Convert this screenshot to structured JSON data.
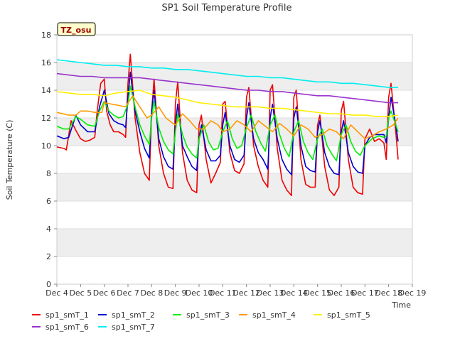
{
  "chart_data": {
    "type": "line",
    "title": "SP1 Soil Temperature Profile",
    "xlabel": "Time",
    "ylabel": "Soil Temperature (C)",
    "annotation": "TZ_osu",
    "xlim": [
      4,
      19
    ],
    "ylim": [
      0,
      18
    ],
    "x_tick_values": [
      4,
      5,
      6,
      7,
      8,
      9,
      10,
      11,
      12,
      13,
      14,
      15,
      16,
      17,
      18,
      19
    ],
    "x_tick_labels": [
      "Dec 4",
      "Dec 5",
      "Dec 6",
      "Dec 7",
      "Dec 8",
      "Dec 9",
      "Dec 10",
      "Dec 11",
      "Dec 12",
      "Dec 13",
      "Dec 14",
      "Dec 15",
      "Dec 16",
      "Dec 17",
      "Dec 18",
      "Dec 19"
    ],
    "y_ticks": [
      0,
      2,
      4,
      6,
      8,
      10,
      12,
      14,
      16,
      18
    ],
    "grid": true,
    "banded_background": true,
    "legend_placement": "bottom",
    "series": [
      {
        "name": "sp1_smT_1",
        "color": "#ee0000",
        "x": [
          4.0,
          4.3,
          4.4,
          4.6,
          4.8,
          5.0,
          5.2,
          5.4,
          5.6,
          5.7,
          5.85,
          6.0,
          6.1,
          6.25,
          6.4,
          6.6,
          6.8,
          6.9,
          7.0,
          7.1,
          7.3,
          7.5,
          7.7,
          7.9,
          8.0,
          8.1,
          8.3,
          8.5,
          8.7,
          8.9,
          9.0,
          9.1,
          9.3,
          9.5,
          9.7,
          9.9,
          10.0,
          10.1,
          10.3,
          10.5,
          10.7,
          10.9,
          11.0,
          11.1,
          11.3,
          11.5,
          11.7,
          11.9,
          12.0,
          12.1,
          12.3,
          12.5,
          12.7,
          12.9,
          13.0,
          13.1,
          13.3,
          13.5,
          13.7,
          13.9,
          14.0,
          14.1,
          14.3,
          14.5,
          14.7,
          14.9,
          15.0,
          15.1,
          15.3,
          15.5,
          15.7,
          15.9,
          16.0,
          16.1,
          16.3,
          16.5,
          16.7,
          16.9,
          17.0,
          17.2,
          17.4,
          17.6,
          17.8,
          17.9,
          18.0,
          18.1,
          18.3,
          18.4
        ],
        "y": [
          9.9,
          9.8,
          9.7,
          11.8,
          11.1,
          10.5,
          10.3,
          10.4,
          10.6,
          12.5,
          14.5,
          14.8,
          12.5,
          11.5,
          11.0,
          11.0,
          10.8,
          10.6,
          14.5,
          16.6,
          12.0,
          9.5,
          8.0,
          7.5,
          12.5,
          14.8,
          10.0,
          8.0,
          7.0,
          6.9,
          13.0,
          14.6,
          9.5,
          7.5,
          6.8,
          6.6,
          11.5,
          12.2,
          9.0,
          7.3,
          8.0,
          8.8,
          13.0,
          13.2,
          9.5,
          8.2,
          8.0,
          8.7,
          13.5,
          14.2,
          10.0,
          8.5,
          7.5,
          7.0,
          14.0,
          14.4,
          9.8,
          7.5,
          6.8,
          6.4,
          13.5,
          14.0,
          9.0,
          7.2,
          7.0,
          7.0,
          11.5,
          12.2,
          8.5,
          6.8,
          6.4,
          7.0,
          12.5,
          13.2,
          9.0,
          7.0,
          6.6,
          6.5,
          10.5,
          11.2,
          10.3,
          10.5,
          10.2,
          9.0,
          13.5,
          14.5,
          11.0,
          9.0
        ]
      },
      {
        "name": "sp1_smT_2",
        "color": "#0000cc",
        "x": [
          4.0,
          4.3,
          4.5,
          4.8,
          5.0,
          5.3,
          5.6,
          5.8,
          6.0,
          6.2,
          6.4,
          6.6,
          6.8,
          6.9,
          7.0,
          7.1,
          7.3,
          7.5,
          7.7,
          7.9,
          8.0,
          8.1,
          8.3,
          8.5,
          8.7,
          8.9,
          9.0,
          9.1,
          9.3,
          9.5,
          9.7,
          9.9,
          10.0,
          10.1,
          10.3,
          10.5,
          10.7,
          10.9,
          11.0,
          11.1,
          11.3,
          11.5,
          11.7,
          11.9,
          12.0,
          12.1,
          12.3,
          12.5,
          12.7,
          12.9,
          13.0,
          13.1,
          13.3,
          13.5,
          13.7,
          13.9,
          14.0,
          14.1,
          14.3,
          14.5,
          14.7,
          14.9,
          15.0,
          15.1,
          15.3,
          15.5,
          15.7,
          15.9,
          16.0,
          16.1,
          16.3,
          16.5,
          16.7,
          16.9,
          17.0,
          17.2,
          17.4,
          17.6,
          17.8,
          17.9,
          18.0,
          18.1,
          18.3,
          18.4
        ],
        "y": [
          10.7,
          10.5,
          10.6,
          12.2,
          11.5,
          11.0,
          11.0,
          12.8,
          14.0,
          12.3,
          11.8,
          11.6,
          11.5,
          11.3,
          13.5,
          15.3,
          12.5,
          11.0,
          9.8,
          9.1,
          12.5,
          14.0,
          10.5,
          9.2,
          8.5,
          8.3,
          11.5,
          13.0,
          10.0,
          9.2,
          8.5,
          8.2,
          10.5,
          11.5,
          9.7,
          8.9,
          8.9,
          9.3,
          11.5,
          12.4,
          10.0,
          9.0,
          8.8,
          9.3,
          12.0,
          13.1,
          10.5,
          9.5,
          9.0,
          8.3,
          12.0,
          13.0,
          10.5,
          9.0,
          8.3,
          7.9,
          12.0,
          12.8,
          10.0,
          8.5,
          8.2,
          8.1,
          11.0,
          11.8,
          9.5,
          8.5,
          8.0,
          7.9,
          11.0,
          11.8,
          9.5,
          8.5,
          8.1,
          8.0,
          10.0,
          10.6,
          10.8,
          10.8,
          10.8,
          10.2,
          12.0,
          13.5,
          11.5,
          10.3
        ]
      },
      {
        "name": "sp1_smT_3",
        "color": "#00ee00",
        "x": [
          4.0,
          4.3,
          4.5,
          4.8,
          5.0,
          5.3,
          5.6,
          5.8,
          6.0,
          6.2,
          6.4,
          6.6,
          6.8,
          7.0,
          7.1,
          7.3,
          7.5,
          7.7,
          7.9,
          8.0,
          8.1,
          8.3,
          8.5,
          8.7,
          8.9,
          9.0,
          9.1,
          9.3,
          9.5,
          9.7,
          9.9,
          10.0,
          10.2,
          10.4,
          10.6,
          10.8,
          11.0,
          11.2,
          11.4,
          11.6,
          11.8,
          12.0,
          12.2,
          12.4,
          12.6,
          12.8,
          13.0,
          13.2,
          13.4,
          13.6,
          13.8,
          14.0,
          14.2,
          14.4,
          14.6,
          14.8,
          15.0,
          15.2,
          15.4,
          15.6,
          15.8,
          16.0,
          16.2,
          16.4,
          16.6,
          16.8,
          17.0,
          17.3,
          17.6,
          17.8,
          17.9,
          18.0,
          18.1,
          18.3,
          18.4
        ],
        "y": [
          11.4,
          11.2,
          11.2,
          12.1,
          11.9,
          11.5,
          11.4,
          12.5,
          13.2,
          12.5,
          12.2,
          12.0,
          12.1,
          13.0,
          14.3,
          12.8,
          11.5,
          10.7,
          10.1,
          12.0,
          13.2,
          11.3,
          10.3,
          9.7,
          9.4,
          11.0,
          12.3,
          10.8,
          9.9,
          9.4,
          9.1,
          10.5,
          11.5,
          10.3,
          9.7,
          9.8,
          11.0,
          11.8,
          10.5,
          9.8,
          10.0,
          11.3,
          12.2,
          11.0,
          10.2,
          9.6,
          11.5,
          12.2,
          10.8,
          9.8,
          9.2,
          11.0,
          11.8,
          10.3,
          9.5,
          9.0,
          10.5,
          11.2,
          10.0,
          9.4,
          8.9,
          10.8,
          11.5,
          10.3,
          9.6,
          9.3,
          10.0,
          10.5,
          10.7,
          10.6,
          10.7,
          12.0,
          12.5,
          11.5,
          11.0
        ]
      },
      {
        "name": "sp1_smT_4",
        "color": "#ff9900",
        "x": [
          4.0,
          4.5,
          4.8,
          5.0,
          5.3,
          5.6,
          5.9,
          6.0,
          6.3,
          6.6,
          6.9,
          7.2,
          7.5,
          7.8,
          8.0,
          8.3,
          8.6,
          8.9,
          9.0,
          9.3,
          9.6,
          9.9,
          10.2,
          10.5,
          10.8,
          11.0,
          11.3,
          11.6,
          11.9,
          12.2,
          12.5,
          12.8,
          13.1,
          13.4,
          13.7,
          14.0,
          14.3,
          14.6,
          14.9,
          15.2,
          15.5,
          15.8,
          16.1,
          16.4,
          16.7,
          17.0,
          17.3,
          17.6,
          17.9,
          18.2,
          18.4
        ],
        "y": [
          12.4,
          12.2,
          12.2,
          12.5,
          12.5,
          12.4,
          12.4,
          13.1,
          13.0,
          12.9,
          12.8,
          13.6,
          12.8,
          12.0,
          12.2,
          12.8,
          12.0,
          11.6,
          11.5,
          12.3,
          11.8,
          11.2,
          11.2,
          11.8,
          11.5,
          11.0,
          11.2,
          11.8,
          11.5,
          11.0,
          11.8,
          11.4,
          11.0,
          11.6,
          11.2,
          10.7,
          11.5,
          11.2,
          10.6,
          10.8,
          11.2,
          11.0,
          10.5,
          11.5,
          11.0,
          10.5,
          10.7,
          11.0,
          11.2,
          11.5,
          12.0
        ]
      },
      {
        "name": "sp1_smT_5",
        "color": "#ffee00",
        "x": [
          4.0,
          4.5,
          5.0,
          5.5,
          6.0,
          6.5,
          7.0,
          7.5,
          8.0,
          8.5,
          9.0,
          9.5,
          10.0,
          10.5,
          11.0,
          11.5,
          12.0,
          12.5,
          13.0,
          13.5,
          14.0,
          14.5,
          15.0,
          15.5,
          16.0,
          16.5,
          17.0,
          17.5,
          18.0,
          18.4
        ],
        "y": [
          13.9,
          13.8,
          13.7,
          13.7,
          13.6,
          13.8,
          13.9,
          14.0,
          13.7,
          13.6,
          13.5,
          13.3,
          13.1,
          13.0,
          12.9,
          12.8,
          12.8,
          12.8,
          12.7,
          12.7,
          12.6,
          12.5,
          12.4,
          12.3,
          12.3,
          12.2,
          12.2,
          12.1,
          12.1,
          12.2
        ]
      },
      {
        "name": "sp1_smT_6",
        "color": "#9933cc",
        "x": [
          4.0,
          4.5,
          5.0,
          5.5,
          6.0,
          6.5,
          7.0,
          7.5,
          8.0,
          8.5,
          9.0,
          9.5,
          10.0,
          10.5,
          11.0,
          11.5,
          12.0,
          12.5,
          13.0,
          13.5,
          14.0,
          14.5,
          15.0,
          15.5,
          16.0,
          16.5,
          17.0,
          17.5,
          18.0,
          18.4
        ],
        "y": [
          15.2,
          15.1,
          15.0,
          15.0,
          14.9,
          14.9,
          14.9,
          14.9,
          14.8,
          14.7,
          14.6,
          14.5,
          14.4,
          14.3,
          14.2,
          14.1,
          14.0,
          14.0,
          13.9,
          13.9,
          13.8,
          13.7,
          13.6,
          13.6,
          13.5,
          13.4,
          13.3,
          13.2,
          13.1,
          13.1
        ]
      },
      {
        "name": "sp1_smT_7",
        "color": "#00eeee",
        "x": [
          4.0,
          4.5,
          5.0,
          5.5,
          6.0,
          6.5,
          7.0,
          7.5,
          8.0,
          8.5,
          9.0,
          9.5,
          10.0,
          10.5,
          11.0,
          11.5,
          12.0,
          12.5,
          13.0,
          13.5,
          14.0,
          14.5,
          15.0,
          15.5,
          16.0,
          16.5,
          17.0,
          17.5,
          18.0,
          18.4
        ],
        "y": [
          16.2,
          16.1,
          16.0,
          15.9,
          15.8,
          15.8,
          15.7,
          15.7,
          15.6,
          15.6,
          15.5,
          15.5,
          15.4,
          15.3,
          15.2,
          15.1,
          15.0,
          15.0,
          14.9,
          14.9,
          14.8,
          14.7,
          14.6,
          14.6,
          14.5,
          14.5,
          14.4,
          14.3,
          14.2,
          14.2
        ]
      }
    ]
  }
}
